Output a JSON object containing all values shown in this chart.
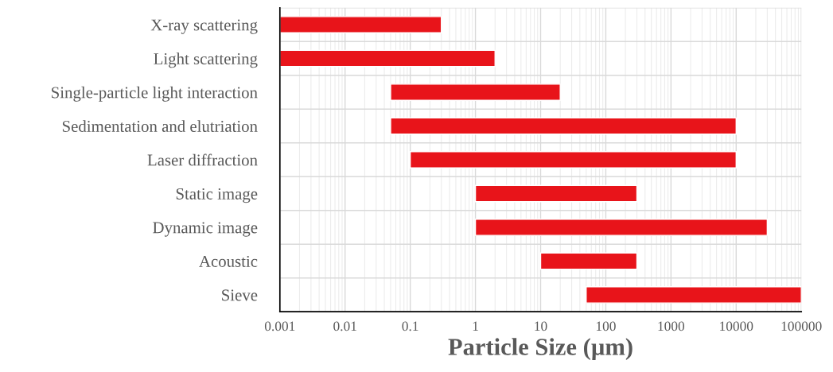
{
  "chart_data": {
    "type": "bar",
    "orientation": "horizontal",
    "xlabel": "Particle Size (µm)",
    "categories": [
      "X-ray scattering",
      "Light scattering",
      "Single-particle light interaction",
      "Sedimentation and elutriation",
      "Laser diffraction",
      "Static image",
      "Dynamic image",
      "Acoustic",
      "Sieve"
    ],
    "base": [
      0.001,
      0.001,
      0.05,
      0.05,
      0.1,
      1,
      1,
      10,
      50
    ],
    "values": [
      0.299,
      1.999,
      19.95,
      9999.95,
      9999.9,
      299,
      29999,
      290,
      99950
    ],
    "color": "#e8141a",
    "log": "x",
    "xlim": [
      0.001,
      100000
    ],
    "xticks": [
      0.001,
      0.01,
      0.1,
      1,
      10,
      100,
      1000,
      10000,
      100000
    ],
    "grid": true,
    "legend": false
  }
}
